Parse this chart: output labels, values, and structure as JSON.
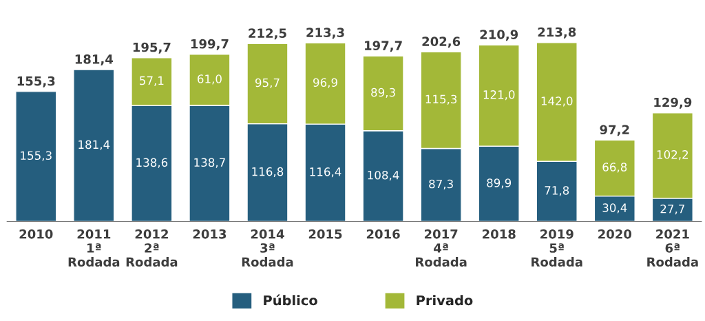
{
  "chart_data": {
    "type": "bar",
    "stacked": true,
    "categories": [
      "2010",
      "2011\n1ª\nRodada",
      "2012\n2ª\nRodada",
      "2013",
      "2014\n3ª\nRodada",
      "2015",
      "2016",
      "2017\n4ª\nRodada",
      "2018",
      "2019\n5ª\nRodada",
      "2020",
      "2021\n6ª\nRodada"
    ],
    "series": [
      {
        "name": "Público",
        "color": "#255e7e",
        "values": [
          155.3,
          181.4,
          138.6,
          138.7,
          116.8,
          116.4,
          108.4,
          87.3,
          89.9,
          71.8,
          30.4,
          27.7
        ],
        "value_labels": [
          "155,3",
          "181,4",
          "138,6",
          "138,7",
          "116,8",
          "116,4",
          "108,4",
          "87,3",
          "89,9",
          "71,8",
          "30,4",
          "27,7"
        ]
      },
      {
        "name": "Privado",
        "color": "#a3b838",
        "values": [
          null,
          null,
          57.1,
          61.0,
          95.7,
          96.9,
          89.3,
          115.3,
          121.0,
          142.0,
          66.8,
          102.2
        ],
        "value_labels": [
          null,
          null,
          "57,1",
          "61,0",
          "95,7",
          "96,9",
          "89,3",
          "115,3",
          "121,0",
          "142,0",
          "66,8",
          "102,2"
        ]
      }
    ],
    "totals": [
      "155,3",
      "181,4",
      "195,7",
      "199,7",
      "212,5",
      "213,3",
      "197,7",
      "202,6",
      "210,9",
      "213,8",
      "97,2",
      "129,9"
    ],
    "legend": "bottom",
    "grid": false,
    "tick_labels": "x"
  }
}
